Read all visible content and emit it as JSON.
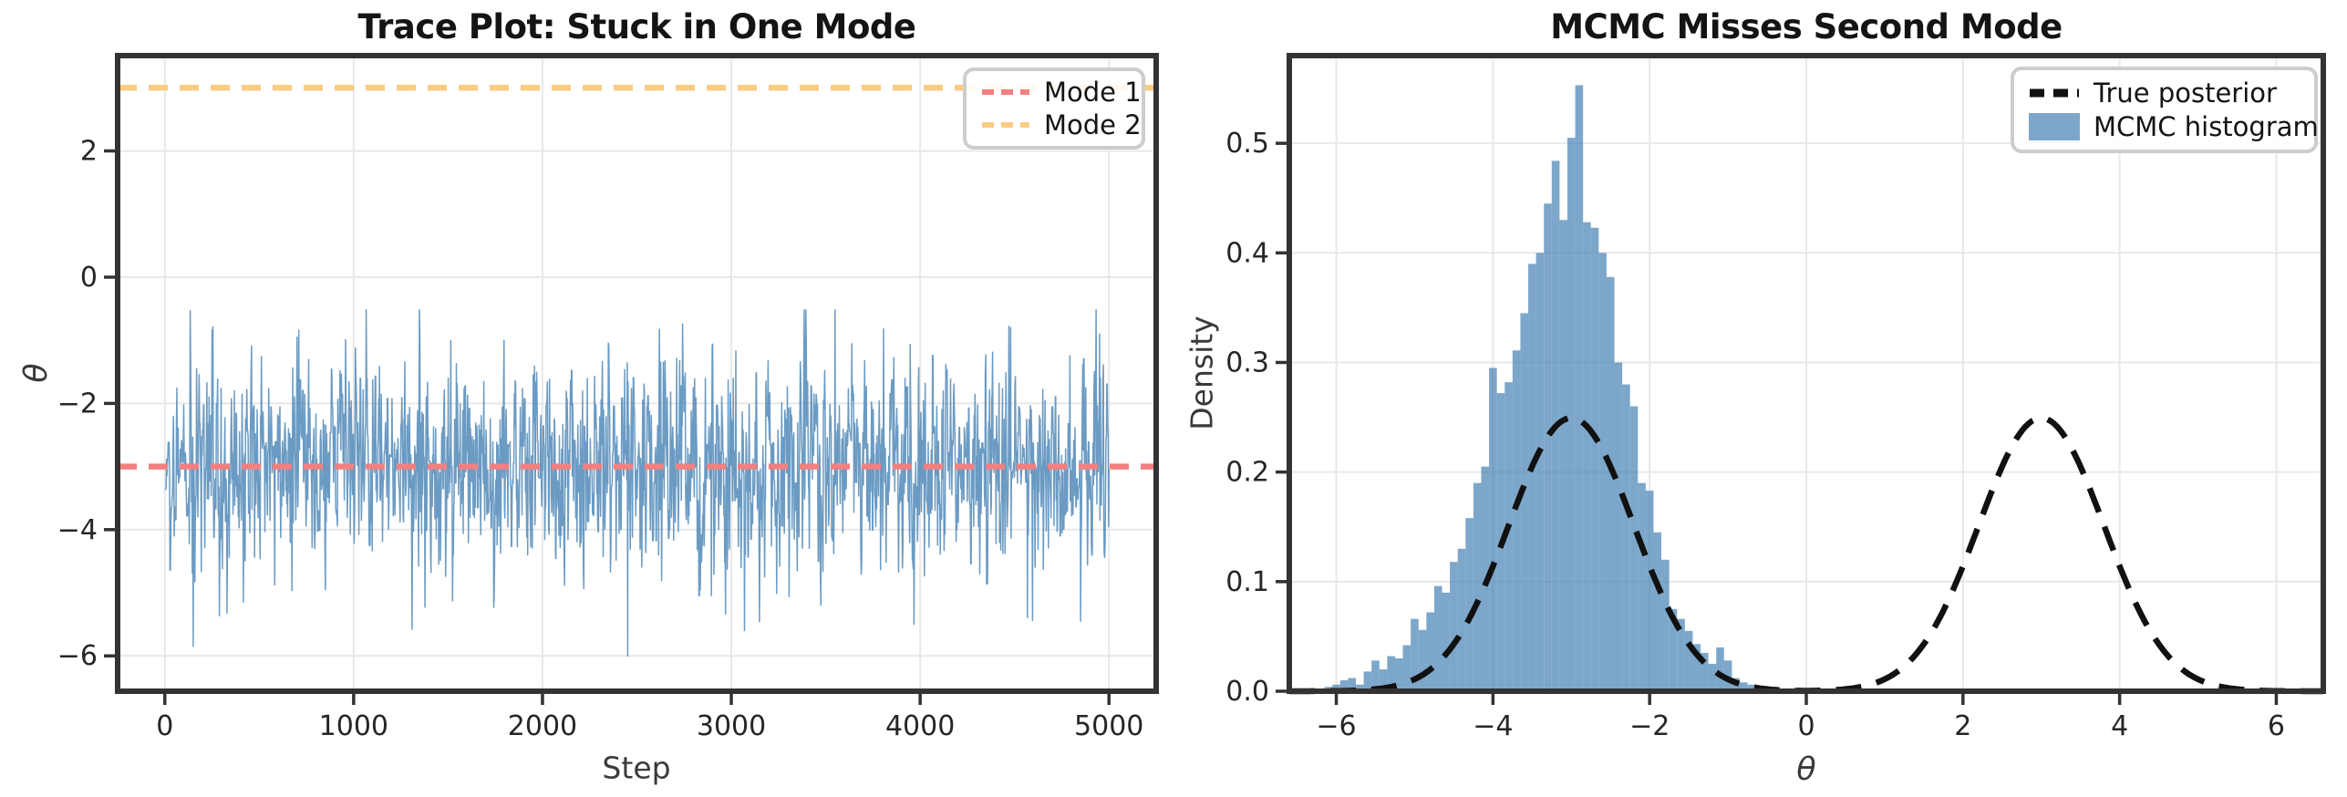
{
  "colors": {
    "spine": "#333333",
    "grid": "#e8e8e8",
    "tick": "#333333",
    "tick_label": "#262626",
    "trace_stroke": "rgba(70,130,180,0.8)",
    "hist_fill": "rgba(70,130,180,0.7)",
    "mode1": "#F28080",
    "mode2": "#FACC84",
    "posterior": "#111111"
  },
  "chart_data": [
    {
      "type": "line",
      "title": "Trace Plot: Stuck in One Mode",
      "xlabel": "Step",
      "ylabel": "θ",
      "xlim": [
        -250,
        5250
      ],
      "ylim": [
        -6.56,
        3.51
      ],
      "grid": true,
      "xticks": [
        {
          "v": 0,
          "label": "0"
        },
        {
          "v": 1000,
          "label": "1000"
        },
        {
          "v": 2000,
          "label": "2000"
        },
        {
          "v": 3000,
          "label": "3000"
        },
        {
          "v": 4000,
          "label": "4000"
        },
        {
          "v": 5000,
          "label": "5000"
        }
      ],
      "yticks": [
        {
          "v": 2,
          "label": "2"
        },
        {
          "v": 0,
          "label": "0"
        },
        {
          "v": -2,
          "label": "−2"
        },
        {
          "v": -4,
          "label": "−4"
        },
        {
          "v": -6,
          "label": "−6"
        }
      ],
      "trace": {
        "steps": 5000,
        "n_points": 2200,
        "mean": -3,
        "sd": 0.8,
        "ar": 0.3,
        "hold_prob": 0.12,
        "clip": [
          -6.02,
          -0.52
        ],
        "seed": 20240817,
        "spikes": [
          {
            "step": 150,
            "value": -5.85
          },
          {
            "step": 700,
            "value": -0.95
          },
          {
            "step": 2450,
            "value": -6.0
          },
          {
            "step": 3070,
            "value": -5.6
          },
          {
            "step": 3550,
            "value": -0.52
          },
          {
            "step": 4480,
            "value": -0.8
          },
          {
            "step": 4850,
            "value": -5.45
          },
          {
            "step": 4950,
            "value": -0.9
          }
        ]
      },
      "mode_lines": [
        {
          "y": -3,
          "label": "Mode 1"
        },
        {
          "y": 3,
          "label": "Mode 2"
        }
      ],
      "legend": {
        "position": "upper right",
        "items": [
          {
            "label": "Mode 1"
          },
          {
            "label": "Mode 2"
          }
        ]
      }
    },
    {
      "type": "histogram",
      "title": "MCMC Misses Second Mode",
      "xlabel": "θ",
      "ylabel": "Density",
      "xlim": [
        -6.6,
        6.6
      ],
      "ylim": [
        0,
        0.58
      ],
      "grid": true,
      "xticks": [
        {
          "v": -6,
          "label": "−6"
        },
        {
          "v": -4,
          "label": "−4"
        },
        {
          "v": -2,
          "label": "−2"
        },
        {
          "v": 0,
          "label": "0"
        },
        {
          "v": 2,
          "label": "2"
        },
        {
          "v": 4,
          "label": "4"
        },
        {
          "v": 6,
          "label": "6"
        }
      ],
      "yticks": [
        {
          "v": 0.0,
          "label": "0.0"
        },
        {
          "v": 0.1,
          "label": "0.1"
        },
        {
          "v": 0.2,
          "label": "0.2"
        },
        {
          "v": 0.3,
          "label": "0.3"
        },
        {
          "v": 0.4,
          "label": "0.4"
        },
        {
          "v": 0.5,
          "label": "0.5"
        }
      ],
      "histogram": {
        "first_center": -6.1,
        "bin_width": 0.1,
        "densities": [
          0.004,
          0.006,
          0.01,
          0.012,
          0.006,
          0.018,
          0.028,
          0.02,
          0.032,
          0.03,
          0.042,
          0.066,
          0.056,
          0.072,
          0.096,
          0.09,
          0.118,
          0.13,
          0.158,
          0.19,
          0.205,
          0.295,
          0.272,
          0.282,
          0.311,
          0.345,
          0.39,
          0.4,
          0.445,
          0.484,
          0.43,
          0.505,
          0.553,
          0.428,
          0.423,
          0.4,
          0.378,
          0.3,
          0.28,
          0.26,
          0.19,
          0.183,
          0.145,
          0.12,
          0.075,
          0.066,
          0.055,
          0.043,
          0.035,
          0.025,
          0.04,
          0.028,
          0.012,
          0.008,
          0.006
        ]
      },
      "true_posterior": {
        "components": [
          {
            "weight": 0.5,
            "mean": -3,
            "sd": 0.8
          },
          {
            "weight": 0.5,
            "mean": 3,
            "sd": 0.8
          }
        ],
        "x_range": [
          -6.6,
          6.6
        ]
      },
      "legend": {
        "position": "upper right",
        "items": [
          {
            "label": "True posterior"
          },
          {
            "label": "MCMC histogram"
          }
        ]
      }
    }
  ]
}
